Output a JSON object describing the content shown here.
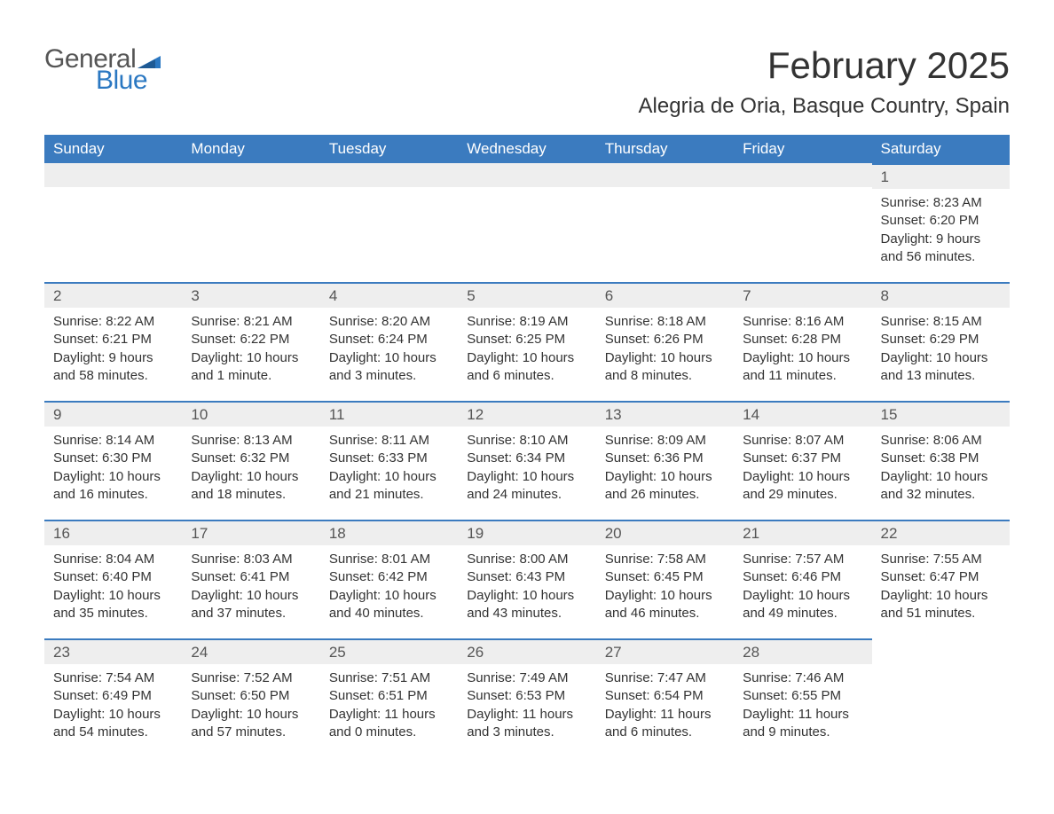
{
  "logo": {
    "text1": "General",
    "text2": "Blue",
    "flag_color": "#2b78c2"
  },
  "header": {
    "month_title": "February 2025",
    "location": "Alegria de Oria, Basque Country, Spain"
  },
  "colors": {
    "header_bg": "#3b7bbf",
    "header_text": "#ffffff",
    "day_header_bg": "#eeeeee",
    "day_border": "#3b7bbf",
    "body_text": "#333333",
    "logo_gray": "#555555",
    "logo_blue": "#2b78c2",
    "page_bg": "#ffffff"
  },
  "weekdays": [
    "Sunday",
    "Monday",
    "Tuesday",
    "Wednesday",
    "Thursday",
    "Friday",
    "Saturday"
  ],
  "labels": {
    "sunrise": "Sunrise",
    "sunset": "Sunset",
    "daylight": "Daylight"
  },
  "weeks": [
    [
      null,
      null,
      null,
      null,
      null,
      null,
      {
        "d": "1",
        "sunrise": "8:23 AM",
        "sunset": "6:20 PM",
        "daylight": "9 hours and 56 minutes."
      }
    ],
    [
      {
        "d": "2",
        "sunrise": "8:22 AM",
        "sunset": "6:21 PM",
        "daylight": "9 hours and 58 minutes."
      },
      {
        "d": "3",
        "sunrise": "8:21 AM",
        "sunset": "6:22 PM",
        "daylight": "10 hours and 1 minute."
      },
      {
        "d": "4",
        "sunrise": "8:20 AM",
        "sunset": "6:24 PM",
        "daylight": "10 hours and 3 minutes."
      },
      {
        "d": "5",
        "sunrise": "8:19 AM",
        "sunset": "6:25 PM",
        "daylight": "10 hours and 6 minutes."
      },
      {
        "d": "6",
        "sunrise": "8:18 AM",
        "sunset": "6:26 PM",
        "daylight": "10 hours and 8 minutes."
      },
      {
        "d": "7",
        "sunrise": "8:16 AM",
        "sunset": "6:28 PM",
        "daylight": "10 hours and 11 minutes."
      },
      {
        "d": "8",
        "sunrise": "8:15 AM",
        "sunset": "6:29 PM",
        "daylight": "10 hours and 13 minutes."
      }
    ],
    [
      {
        "d": "9",
        "sunrise": "8:14 AM",
        "sunset": "6:30 PM",
        "daylight": "10 hours and 16 minutes."
      },
      {
        "d": "10",
        "sunrise": "8:13 AM",
        "sunset": "6:32 PM",
        "daylight": "10 hours and 18 minutes."
      },
      {
        "d": "11",
        "sunrise": "8:11 AM",
        "sunset": "6:33 PM",
        "daylight": "10 hours and 21 minutes."
      },
      {
        "d": "12",
        "sunrise": "8:10 AM",
        "sunset": "6:34 PM",
        "daylight": "10 hours and 24 minutes."
      },
      {
        "d": "13",
        "sunrise": "8:09 AM",
        "sunset": "6:36 PM",
        "daylight": "10 hours and 26 minutes."
      },
      {
        "d": "14",
        "sunrise": "8:07 AM",
        "sunset": "6:37 PM",
        "daylight": "10 hours and 29 minutes."
      },
      {
        "d": "15",
        "sunrise": "8:06 AM",
        "sunset": "6:38 PM",
        "daylight": "10 hours and 32 minutes."
      }
    ],
    [
      {
        "d": "16",
        "sunrise": "8:04 AM",
        "sunset": "6:40 PM",
        "daylight": "10 hours and 35 minutes."
      },
      {
        "d": "17",
        "sunrise": "8:03 AM",
        "sunset": "6:41 PM",
        "daylight": "10 hours and 37 minutes."
      },
      {
        "d": "18",
        "sunrise": "8:01 AM",
        "sunset": "6:42 PM",
        "daylight": "10 hours and 40 minutes."
      },
      {
        "d": "19",
        "sunrise": "8:00 AM",
        "sunset": "6:43 PM",
        "daylight": "10 hours and 43 minutes."
      },
      {
        "d": "20",
        "sunrise": "7:58 AM",
        "sunset": "6:45 PM",
        "daylight": "10 hours and 46 minutes."
      },
      {
        "d": "21",
        "sunrise": "7:57 AM",
        "sunset": "6:46 PM",
        "daylight": "10 hours and 49 minutes."
      },
      {
        "d": "22",
        "sunrise": "7:55 AM",
        "sunset": "6:47 PM",
        "daylight": "10 hours and 51 minutes."
      }
    ],
    [
      {
        "d": "23",
        "sunrise": "7:54 AM",
        "sunset": "6:49 PM",
        "daylight": "10 hours and 54 minutes."
      },
      {
        "d": "24",
        "sunrise": "7:52 AM",
        "sunset": "6:50 PM",
        "daylight": "10 hours and 57 minutes."
      },
      {
        "d": "25",
        "sunrise": "7:51 AM",
        "sunset": "6:51 PM",
        "daylight": "11 hours and 0 minutes."
      },
      {
        "d": "26",
        "sunrise": "7:49 AM",
        "sunset": "6:53 PM",
        "daylight": "11 hours and 3 minutes."
      },
      {
        "d": "27",
        "sunrise": "7:47 AM",
        "sunset": "6:54 PM",
        "daylight": "11 hours and 6 minutes."
      },
      {
        "d": "28",
        "sunrise": "7:46 AM",
        "sunset": "6:55 PM",
        "daylight": "11 hours and 9 minutes."
      },
      null
    ]
  ]
}
